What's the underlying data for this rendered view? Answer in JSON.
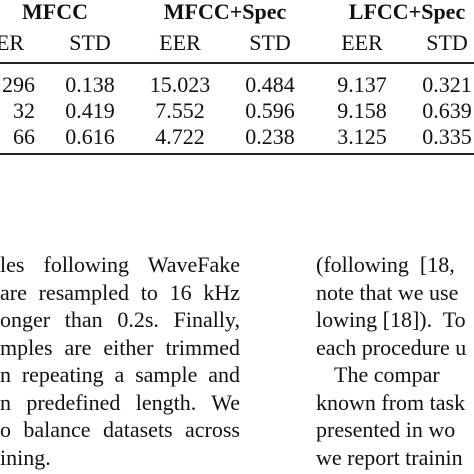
{
  "table": {
    "groups": [
      "MFCC",
      "MFCC+Spec",
      "LFCC+Spec"
    ],
    "subheaders": [
      "ER",
      "STD",
      "EER",
      "STD",
      "EER",
      "STD"
    ],
    "rows": [
      [
        "296",
        "0.138",
        "15.023",
        "0.484",
        "9.137",
        "0.321"
      ],
      [
        "32",
        "0.419",
        "7.552",
        "0.596",
        "9.158",
        "0.639"
      ],
      [
        "66",
        "0.616",
        "4.722",
        "0.238",
        "3.125",
        "0.335"
      ]
    ]
  },
  "left_column": {
    "lines": [
      "les following WaveFake",
      "are resampled to 16 kHz",
      "onger than 0.2s.  Finally,",
      "mples are either trimmed",
      "n repeating a sample and",
      "n predefined length.  We",
      "o balance datasets across",
      "ining."
    ]
  },
  "right_column": {
    "lines": [
      "(following  [18,",
      "note that we use",
      "lowing [18]).  To",
      "each procedure u",
      "The compar",
      "known from task",
      "presented in wo",
      "we report trainin"
    ]
  }
}
